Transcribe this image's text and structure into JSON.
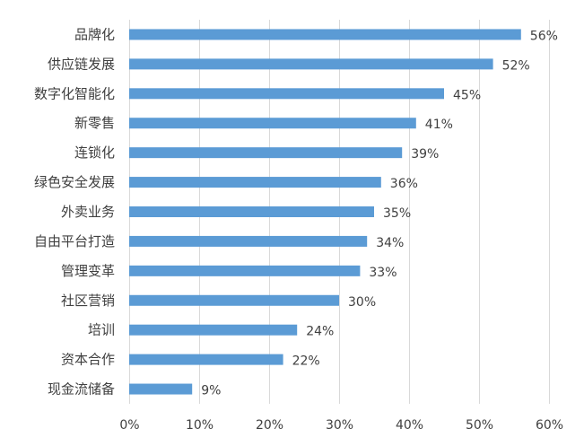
{
  "chart_data": {
    "type": "bar",
    "orientation": "horizontal",
    "categories": [
      "品牌化",
      "供应链发展",
      "数字化智能化",
      "新零售",
      "连锁化",
      "绿色安全发展",
      "外卖业务",
      "自由平台打造",
      "管理变革",
      "社区营销",
      "培训",
      "资本合作",
      "现金流储备"
    ],
    "values": [
      56,
      52,
      45,
      41,
      39,
      36,
      35,
      34,
      33,
      30,
      24,
      22,
      9
    ],
    "data_labels": [
      "56%",
      "52%",
      "45%",
      "41%",
      "39%",
      "36%",
      "35%",
      "34%",
      "33%",
      "30%",
      "24%",
      "22%",
      "9%"
    ],
    "x_ticks": [
      "0%",
      "10%",
      "20%",
      "30%",
      "40%",
      "50%",
      "60%"
    ],
    "xlim": [
      0,
      60
    ],
    "title": "",
    "xlabel": "",
    "ylabel": "",
    "grid": "vertical",
    "legend": "none",
    "bar_color": "#5b9bd5"
  }
}
